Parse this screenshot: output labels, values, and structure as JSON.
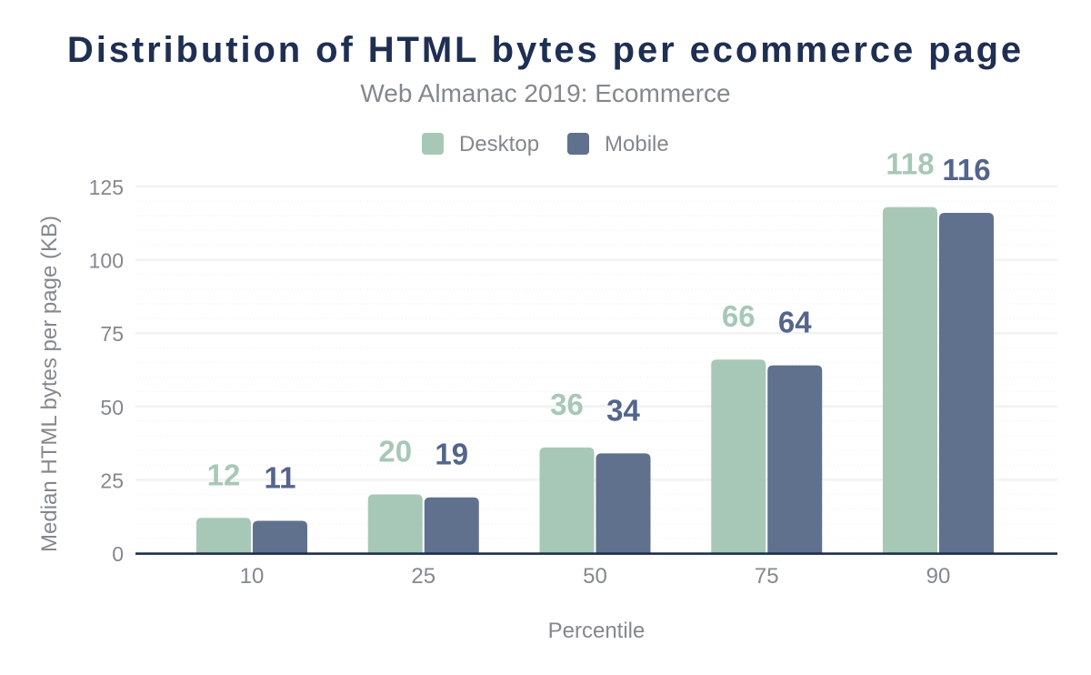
{
  "chart_data": {
    "type": "bar",
    "title": "Distribution of HTML bytes per ecommerce page",
    "subtitle": "Web Almanac 2019: Ecommerce",
    "xlabel": "Percentile",
    "ylabel": "Median HTML bytes per page (KB)",
    "categories": [
      "10",
      "25",
      "50",
      "75",
      "90"
    ],
    "series": [
      {
        "name": "Desktop",
        "values": [
          12,
          20,
          36,
          66,
          118
        ]
      },
      {
        "name": "Mobile",
        "values": [
          11,
          19,
          34,
          64,
          116
        ]
      }
    ],
    "ylim": [
      0,
      125
    ],
    "yticks": [
      0,
      25,
      50,
      75,
      100,
      125
    ],
    "minor_gridline_step": 5,
    "grid": "on",
    "legend_position": "top",
    "data_labels": "above bars"
  },
  "colors": {
    "background": "#ffffff",
    "desktop": "#a7c8b7",
    "mobile": "#60718d",
    "desktop_label": "#a7c8b7",
    "mobile_label": "#54658b",
    "title_text": "#1e2f52",
    "axis_line": "#1d2d4e",
    "gray_text": "#84888e",
    "grid_major": "#f2f2f2",
    "grid_minor": "#f7f7f7"
  }
}
